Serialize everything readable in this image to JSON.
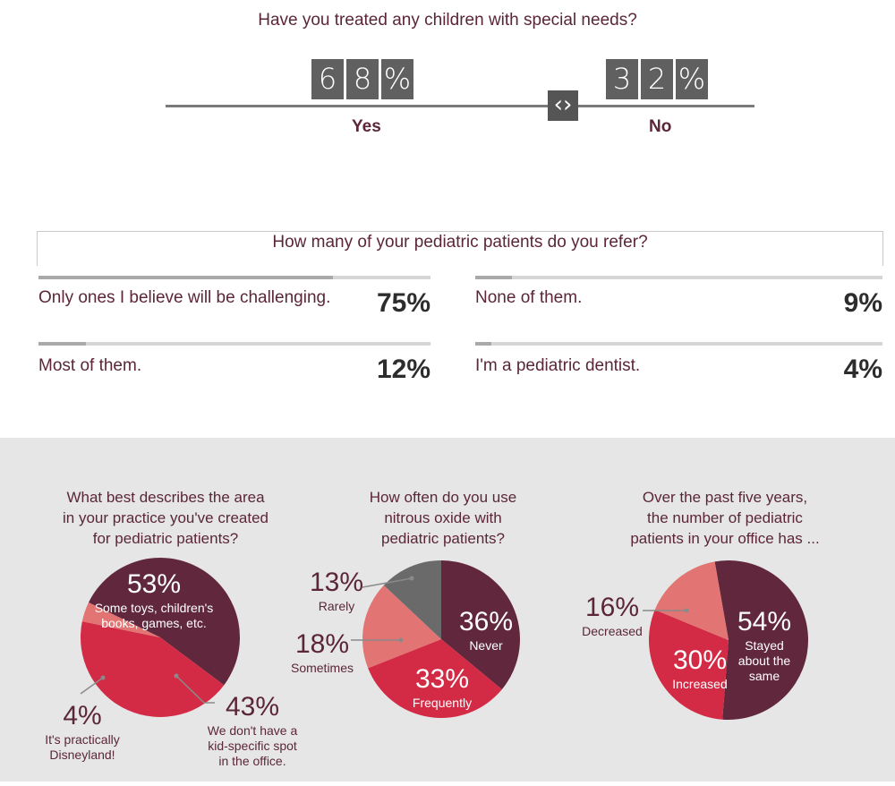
{
  "special_needs": {
    "question": "Have you treated any children with special needs?",
    "yes": {
      "digits": [
        "6",
        "8",
        "%"
      ],
      "label": "Yes"
    },
    "no": {
      "digits": [
        "3",
        "2",
        "%"
      ],
      "label": "No"
    },
    "knob_symbol": "‹›"
  },
  "referrals": {
    "question": "How many of your pediatric patients do you refer?",
    "items": [
      {
        "label": "Only ones I believe will be challenging.",
        "value": "75%",
        "fraction": 0.75
      },
      {
        "label": "None of them.",
        "value": "9%",
        "fraction": 0.09
      },
      {
        "label": "Most of them.",
        "value": "12%",
        "fraction": 0.12
      },
      {
        "label": "I'm a pediatric dentist.",
        "value": "4%",
        "fraction": 0.04
      }
    ]
  },
  "colors": {
    "maroon": "#61283d",
    "red": "#d32b45",
    "salmon": "#e27573",
    "gray": "#6a6a6a",
    "background_band": "#e6e6e7"
  },
  "chart_data": [
    {
      "type": "bar",
      "title": "Have you treated any children with special needs?",
      "categories": [
        "Yes",
        "No"
      ],
      "values": [
        68,
        32
      ]
    },
    {
      "type": "bar",
      "title": "How many of your pediatric patients do you refer?",
      "categories": [
        "Only ones I believe will be challenging.",
        "None of them.",
        "Most of them.",
        "I'm a pediatric dentist."
      ],
      "values": [
        75,
        9,
        12,
        4
      ]
    },
    {
      "type": "pie",
      "title_lines": [
        "What best describes the area",
        "in your practice you've created",
        "for pediatric patients?"
      ],
      "slices": [
        {
          "pct": 53,
          "value_label": "53%",
          "label_lines": [
            "Some toys, children's",
            "books, games, etc."
          ],
          "color": "#61283d"
        },
        {
          "pct": 43,
          "value_label": "43%",
          "label_lines": [
            "We don't have a",
            "kid-specific spot",
            "in the office."
          ],
          "color": "#d32b45"
        },
        {
          "pct": 4,
          "value_label": "4%",
          "label_lines": [
            "It's practically",
            "Disneyland!"
          ],
          "color": "#e27573"
        }
      ]
    },
    {
      "type": "pie",
      "title_lines": [
        "How often do you use",
        "nitrous oxide with",
        "pediatric patients?"
      ],
      "slices": [
        {
          "pct": 36,
          "value_label": "36%",
          "label_lines": [
            "Never"
          ],
          "color": "#61283d"
        },
        {
          "pct": 33,
          "value_label": "33%",
          "label_lines": [
            "Frequently"
          ],
          "color": "#d32b45"
        },
        {
          "pct": 18,
          "value_label": "18%",
          "label_lines": [
            "Sometimes"
          ],
          "color": "#e27573"
        },
        {
          "pct": 13,
          "value_label": "13%",
          "label_lines": [
            "Rarely"
          ],
          "color": "#6a6a6a"
        }
      ]
    },
    {
      "type": "pie",
      "title_lines": [
        "Over the past five years,",
        "the number of pediatric",
        "patients in your office has ..."
      ],
      "slices": [
        {
          "pct": 54,
          "value_label": "54%",
          "label_lines": [
            "Stayed",
            "about the",
            "same"
          ],
          "color": "#61283d"
        },
        {
          "pct": 30,
          "value_label": "30%",
          "label_lines": [
            "Increased"
          ],
          "color": "#d32b45"
        },
        {
          "pct": 16,
          "value_label": "16%",
          "label_lines": [
            "Decreased"
          ],
          "color": "#e27573"
        }
      ]
    }
  ]
}
